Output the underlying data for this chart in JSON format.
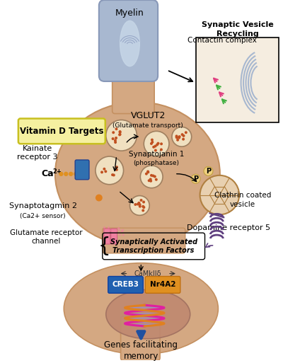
{
  "bg_color": "#ffffff",
  "neuron_body_color": "#d4a882",
  "neuron_body_edge": "#c49060",
  "myelin_color": "#a8b8d0",
  "myelin_highlight": "#c8d8e8",
  "labels": {
    "myelin": "Myelin",
    "vglut2": "VGLUT2",
    "vglut2_sub": "(Glutamate transport)",
    "synaptojanin": "Synaptojanin 1",
    "synaptojanin_sub": "(phosphatase)",
    "kainate": "Kainate\nreceptor 3",
    "ca2": "Ca2+",
    "synaptotagmin": "Synaptotagmin 2",
    "synaptotagmin_sub": "(Ca2+ sensor)",
    "glutamate_r": "Glutamate receptor\nchannel",
    "clathrin": "Clathrin coated\nvesicle",
    "contactin": "Contactin complex",
    "synaptic_vesicle": "Synaptic Vesicle\nRecycling",
    "satf": "Synaptically Activated\nTranscription Factors",
    "camkii": "CaMkIIδ",
    "creb3": "CREB3",
    "nr4a2": "Nr4A2",
    "dopamine": "Dopamine receptor 5",
    "genes": "Genes facilitating\nmemory",
    "vitamin_d": "Vitamin D Targets",
    "p_label": "P"
  }
}
